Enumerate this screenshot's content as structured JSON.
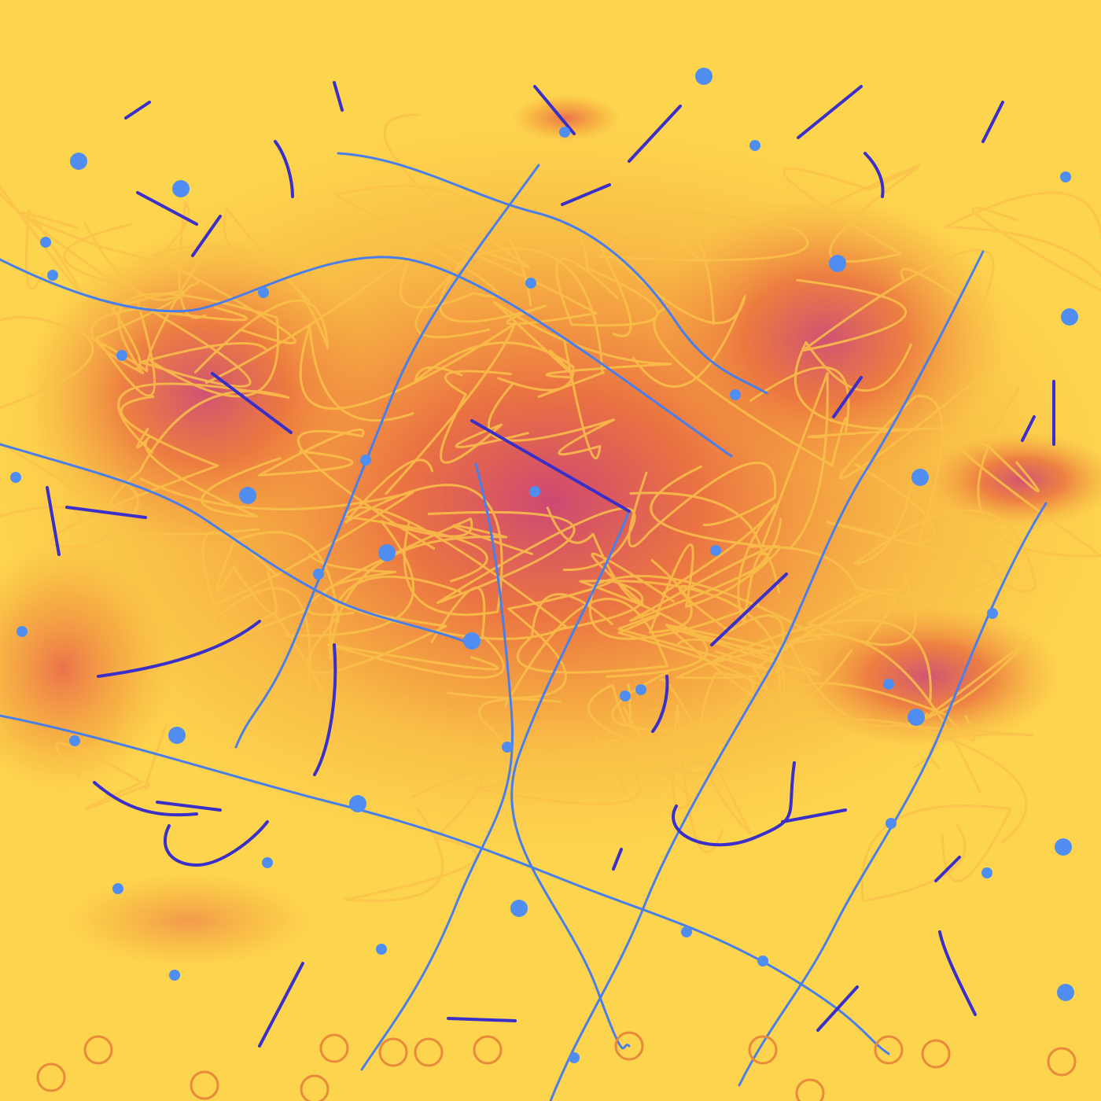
{
  "artwork": {
    "colors": {
      "background": "#fdd44e",
      "smudge_orange": "#f39a3c",
      "smudge_magenta": "#d9506e",
      "scribble": "#fbc24a",
      "line_blue": "#4a7ee8",
      "stroke_indigo": "#3a2fc8",
      "dot_blue": "#4f8ef0",
      "ring_orange": "#e9893a"
    }
  }
}
